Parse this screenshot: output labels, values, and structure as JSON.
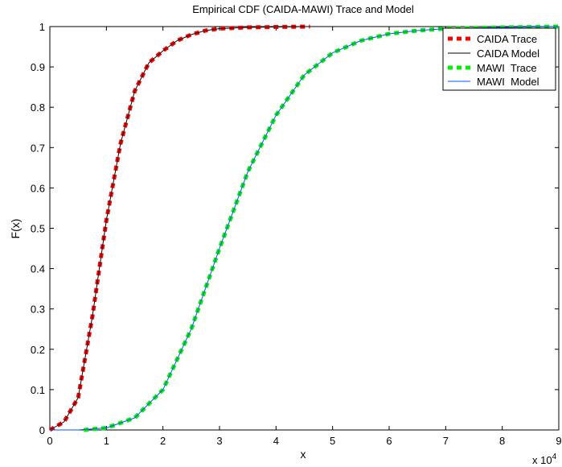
{
  "chart_data": {
    "type": "line",
    "title": "Empirical CDF (CAIDA-MAWI) Trace and Model",
    "xlabel": "x",
    "ylabel": "F(x)",
    "x_multiplier_base": "x 10",
    "x_multiplier_exponent": "4",
    "xlim": [
      0,
      9
    ],
    "ylim": [
      0,
      1
    ],
    "xticks": [
      0,
      1,
      2,
      3,
      4,
      5,
      6,
      7,
      8,
      9
    ],
    "yticks": [
      0,
      0.1,
      0.2,
      0.3,
      0.4,
      0.5,
      0.6,
      0.7,
      0.8,
      0.9,
      1
    ],
    "grid": false,
    "legend_position": "top-right",
    "series": [
      {
        "name": "CAIDA Trace",
        "style": "dashed-thick",
        "color": "#ff0000",
        "x": [
          0,
          0.25,
          0.5,
          0.75,
          1.0,
          1.25,
          1.5,
          1.75,
          2.0,
          2.25,
          2.5,
          2.75,
          3.0,
          3.5,
          4.0,
          4.6
        ],
        "y": [
          0.0,
          0.02,
          0.08,
          0.28,
          0.52,
          0.71,
          0.84,
          0.91,
          0.94,
          0.965,
          0.98,
          0.99,
          0.995,
          0.998,
          0.999,
          1.0
        ]
      },
      {
        "name": "CAIDA Model",
        "style": "solid-thin",
        "color": "#000000",
        "x": [
          0,
          0.25,
          0.5,
          0.75,
          1.0,
          1.25,
          1.5,
          1.75,
          2.0,
          2.25,
          2.5,
          2.75,
          3.0,
          3.5,
          4.0,
          4.6
        ],
        "y": [
          0.0,
          0.02,
          0.08,
          0.28,
          0.52,
          0.71,
          0.84,
          0.91,
          0.94,
          0.965,
          0.98,
          0.99,
          0.995,
          0.998,
          0.999,
          1.0
        ]
      },
      {
        "name": "MAWI  Trace",
        "style": "dashed-thick",
        "color": "#00ee00",
        "x": [
          0.6,
          1.0,
          1.5,
          2.0,
          2.5,
          3.0,
          3.5,
          4.0,
          4.5,
          5.0,
          5.5,
          6.0,
          6.5,
          7.0,
          8.0,
          9.0
        ],
        "y": [
          0.0,
          0.005,
          0.03,
          0.1,
          0.25,
          0.45,
          0.64,
          0.78,
          0.88,
          0.935,
          0.965,
          0.982,
          0.99,
          0.995,
          0.998,
          1.0
        ]
      },
      {
        "name": "MAWI  Model",
        "style": "solid-thin",
        "color": "#0055ff",
        "x": [
          0,
          0.5,
          1.0,
          1.5,
          2.0,
          2.5,
          3.0,
          3.5,
          4.0,
          4.5,
          5.0,
          5.5,
          6.0,
          6.5,
          7.0,
          8.0,
          9.0
        ],
        "y": [
          0.0,
          0.0,
          0.005,
          0.03,
          0.1,
          0.25,
          0.45,
          0.64,
          0.78,
          0.88,
          0.935,
          0.965,
          0.982,
          0.99,
          0.995,
          0.998,
          1.0
        ]
      }
    ]
  }
}
